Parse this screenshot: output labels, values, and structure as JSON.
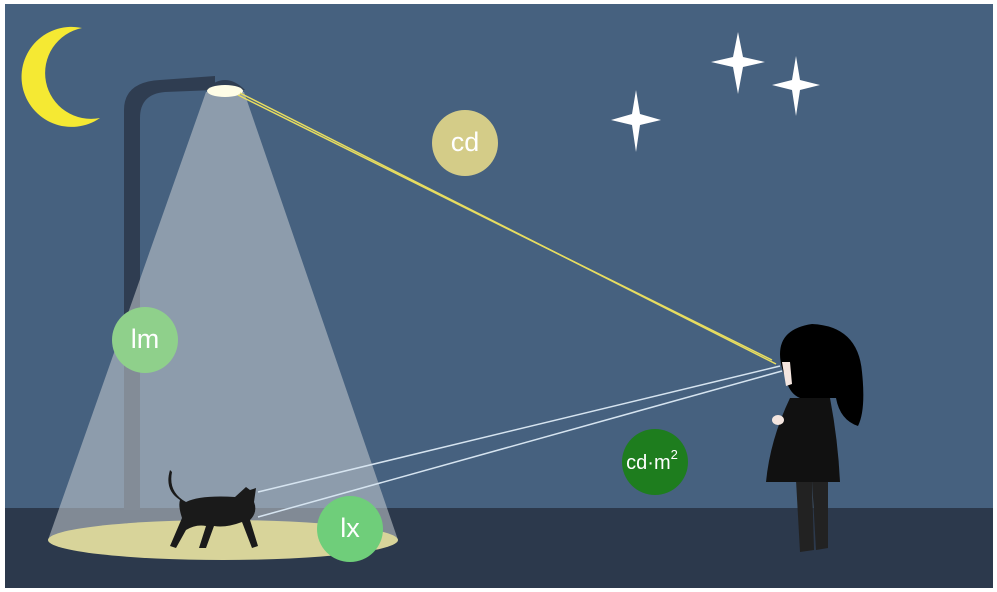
{
  "labels": {
    "luminous_intensity": "cd",
    "luminous_flux": "lm",
    "illuminance": "lx",
    "luminance": {
      "text": "cd·m",
      "sup": "2"
    }
  }
}
